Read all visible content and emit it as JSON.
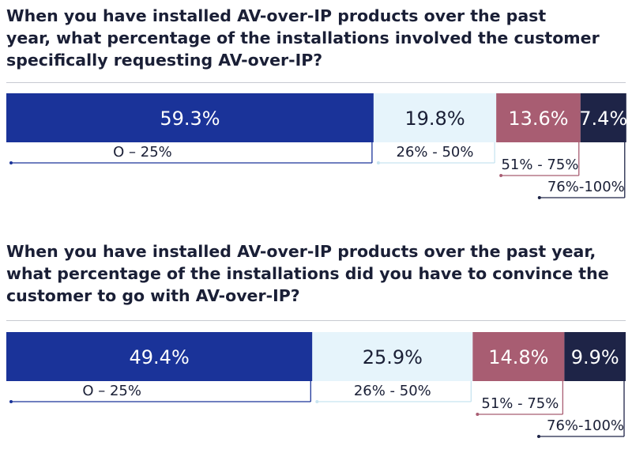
{
  "chart_data": [
    {
      "type": "bar",
      "subtype": "stacked-100-horizontal",
      "title": "When you have installed AV-over-IP products over the past year, what percentage of the installations involved the customer specifically requesting AV-over-IP?",
      "title_lines": [
        "When you have installed AV-over-IP products over the past",
        "year, what percentage of the installations involved the customer",
        "specifically requesting AV-over-IP?"
      ],
      "categories": [
        "O – 25%",
        "26% - 50%",
        "51% - 75%",
        "76%-100%"
      ],
      "values": [
        59.3,
        19.8,
        13.6,
        7.4
      ],
      "labels": [
        "59.3%",
        "19.8%",
        "13.6%",
        "7.4%"
      ],
      "colors": [
        "#1a3399",
        "#e6f4fb",
        "#a85d72",
        "#1e2447"
      ],
      "label_colors": [
        "#ffffff",
        "#1a1f36",
        "#ffffff",
        "#ffffff"
      ],
      "xlim": [
        0,
        100
      ]
    },
    {
      "type": "bar",
      "subtype": "stacked-100-horizontal",
      "title": "When you have installed AV-over-IP products over the past year, what percentage of the installations did you have to convince the customer to go with AV-over-IP?",
      "title_lines": [
        "When you have installed AV-over-IP products over the past year,",
        "what percentage of the installations did you have to convince the",
        "customer to go with AV-over-IP?"
      ],
      "categories": [
        "O – 25%",
        "26% - 50%",
        "51% - 75%",
        "76%-100%"
      ],
      "values": [
        49.4,
        25.9,
        14.8,
        9.9
      ],
      "labels": [
        "49.4%",
        "25.9%",
        "14.8%",
        "9.9%"
      ],
      "colors": [
        "#1a3399",
        "#e6f4fb",
        "#a85d72",
        "#1e2447"
      ],
      "label_colors": [
        "#ffffff",
        "#1a1f36",
        "#ffffff",
        "#ffffff"
      ],
      "xlim": [
        0,
        100
      ]
    }
  ]
}
